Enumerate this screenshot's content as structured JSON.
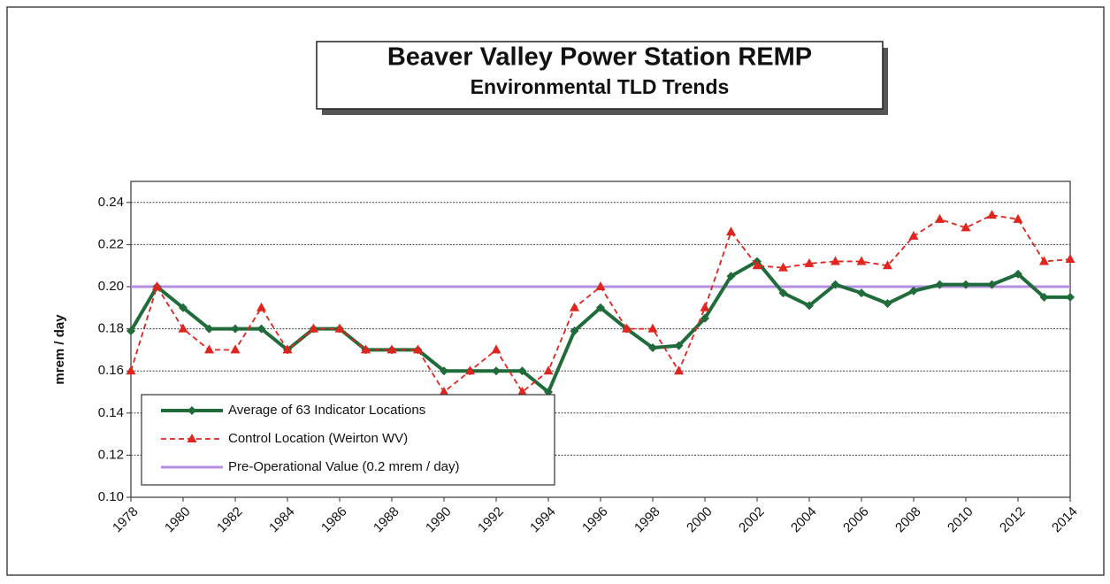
{
  "chart_data": {
    "type": "line",
    "title": "Beaver Valley Power Station REMP",
    "subtitle": "Environmental TLD Trends",
    "y_label": "mrem / day",
    "x": [
      1978,
      1979,
      1980,
      1981,
      1982,
      1983,
      1984,
      1985,
      1986,
      1987,
      1988,
      1989,
      1990,
      1991,
      1992,
      1993,
      1994,
      1995,
      1996,
      1997,
      1998,
      1999,
      2000,
      2001,
      2002,
      2003,
      2004,
      2005,
      2006,
      2007,
      2008,
      2009,
      2010,
      2011,
      2012,
      2013,
      2014
    ],
    "xlim": [
      1978,
      2014
    ],
    "xticks": [
      1978,
      1980,
      1982,
      1984,
      1986,
      1988,
      1990,
      1992,
      1994,
      1996,
      1998,
      2000,
      2002,
      2004,
      2006,
      2008,
      2010,
      2012,
      2014
    ],
    "ylim": [
      0.1,
      0.25
    ],
    "yticks": [
      {
        "value": 0.1,
        "label": "0.10"
      },
      0.12,
      0.14,
      0.16,
      0.18,
      {
        "value": 0.2,
        "label": "0.20"
      },
      0.22,
      0.24
    ],
    "grid": true,
    "legend": "lower left",
    "series": [
      {
        "name": "Average of 63 Indicator Locations",
        "color": "#1f6b3a",
        "marker": "diamond",
        "values": [
          0.179,
          0.2,
          0.19,
          0.18,
          0.18,
          0.18,
          0.17,
          0.18,
          0.18,
          0.17,
          0.17,
          0.17,
          0.16,
          0.16,
          0.16,
          0.16,
          0.15,
          0.179,
          0.19,
          0.18,
          0.171,
          0.172,
          0.185,
          0.205,
          0.212,
          0.197,
          0.191,
          0.201,
          0.197,
          0.192,
          0.198,
          0.201,
          0.201,
          0.201,
          0.206,
          0.195,
          0.195
        ]
      },
      {
        "name": "Control Location (Weirton WV)",
        "color": "#e0251f",
        "marker": "triangle",
        "dashed": true,
        "values": [
          0.16,
          0.2,
          0.18,
          0.17,
          0.17,
          0.19,
          0.17,
          0.18,
          0.18,
          0.17,
          0.17,
          0.17,
          0.15,
          0.16,
          0.17,
          0.15,
          0.16,
          0.19,
          0.2,
          0.18,
          0.18,
          0.16,
          0.19,
          0.226,
          0.21,
          0.209,
          0.211,
          0.212,
          0.212,
          0.21,
          0.224,
          0.232,
          0.228,
          0.234,
          0.232,
          0.212,
          0.213
        ]
      }
    ],
    "reference_line": {
      "name": "Pre-Operational Value (0.2 mrem / day)",
      "value": 0.2,
      "color": "#b48ee0"
    }
  }
}
